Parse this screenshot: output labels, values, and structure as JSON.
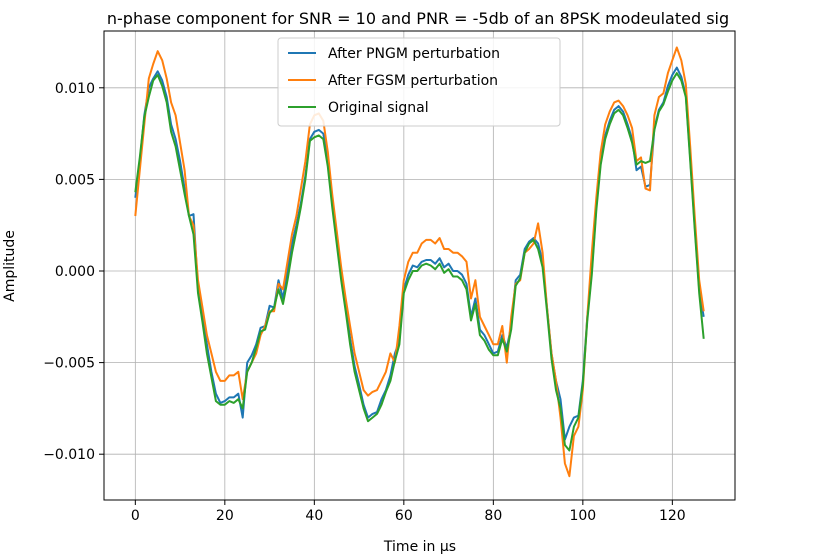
{
  "chart_data": {
    "type": "line",
    "title": "n-phase component for SNR = 10 and PNR = -5db of an 8PSK modeulated sig",
    "xlabel": "Time in µs",
    "ylabel": "Amplitude",
    "xlim": [
      -7,
      134
    ],
    "ylim": [
      -0.0125,
      0.0131
    ],
    "xticks": [
      0,
      20,
      40,
      60,
      80,
      100,
      120
    ],
    "yticks": [
      -0.01,
      -0.005,
      0.0,
      0.005,
      0.01
    ],
    "xtick_labels": [
      "0",
      "20",
      "40",
      "60",
      "80",
      "100",
      "120"
    ],
    "ytick_labels": [
      "−0.010",
      "−0.005",
      "0.000",
      "0.005",
      "0.010"
    ],
    "grid": true,
    "legend": "upper-center",
    "x": [
      0,
      1,
      2,
      3,
      4,
      5,
      6,
      7,
      8,
      9,
      10,
      11,
      12,
      13,
      14,
      15,
      16,
      17,
      18,
      19,
      20,
      21,
      22,
      23,
      24,
      25,
      26,
      27,
      28,
      29,
      30,
      31,
      32,
      33,
      34,
      35,
      36,
      37,
      38,
      39,
      40,
      41,
      42,
      43,
      44,
      45,
      46,
      47,
      48,
      49,
      50,
      51,
      52,
      53,
      54,
      55,
      56,
      57,
      58,
      59,
      60,
      61,
      62,
      63,
      64,
      65,
      66,
      67,
      68,
      69,
      70,
      71,
      72,
      73,
      74,
      75,
      76,
      77,
      78,
      79,
      80,
      81,
      82,
      83,
      84,
      85,
      86,
      87,
      88,
      89,
      90,
      91,
      92,
      93,
      94,
      95,
      96,
      97,
      98,
      99,
      100,
      101,
      102,
      103,
      104,
      105,
      106,
      107,
      108,
      109,
      110,
      111,
      112,
      113,
      114,
      115,
      116,
      117,
      118,
      119,
      120,
      121,
      122,
      123,
      124,
      125,
      126,
      127
    ],
    "series": [
      {
        "name": "After PNGM perturbation",
        "color": "#1f77b4",
        "values": [
          0.004,
          0.006,
          0.0085,
          0.01,
          0.0105,
          0.0109,
          0.0104,
          0.0095,
          0.008,
          0.0072,
          0.006,
          0.0045,
          0.003,
          0.0031,
          -0.001,
          -0.0025,
          -0.004,
          -0.0055,
          -0.0067,
          -0.0072,
          -0.0071,
          -0.0069,
          -0.0069,
          -0.0067,
          -0.008,
          -0.005,
          -0.0046,
          -0.004,
          -0.0031,
          -0.003,
          -0.0019,
          -0.002,
          -0.0005,
          -0.0015,
          0.0,
          0.0015,
          0.0025,
          0.0037,
          0.0052,
          0.0072,
          0.0076,
          0.0077,
          0.0075,
          0.006,
          0.0038,
          0.0018,
          -0.0002,
          -0.0018,
          -0.0037,
          -0.0052,
          -0.0062,
          -0.0073,
          -0.008,
          -0.0078,
          -0.0077,
          -0.007,
          -0.0065,
          -0.0057,
          -0.0045,
          -0.0038,
          -0.001,
          -0.0002,
          0.0003,
          0.0002,
          0.0005,
          0.0006,
          0.0006,
          0.0004,
          0.0007,
          0.0002,
          0.0004,
          0.0,
          0.0,
          -0.0002,
          -0.0007,
          -0.0025,
          -0.0015,
          -0.0032,
          -0.0035,
          -0.004,
          -0.0045,
          -0.0044,
          -0.0035,
          -0.0042,
          -0.003,
          -0.0005,
          -0.0002,
          0.0012,
          0.0016,
          0.0018,
          0.0015,
          0.0005,
          -0.002,
          -0.0045,
          -0.006,
          -0.007,
          -0.0092,
          -0.0085,
          -0.008,
          -0.0079,
          -0.006,
          -0.0025,
          0.0,
          0.0035,
          0.006,
          0.0074,
          0.0082,
          0.0088,
          0.009,
          0.0087,
          0.008,
          0.0072,
          0.0055,
          0.0057,
          0.0046,
          0.0047,
          0.0078,
          0.0088,
          0.0092,
          0.0101,
          0.0107,
          0.0111,
          0.0106,
          0.0096,
          0.0062,
          0.0025,
          -0.001,
          -0.0025
        ]
      },
      {
        "name": "After FGSM perturbation",
        "color": "#ff7f0e",
        "values": [
          0.003,
          0.0055,
          0.008,
          0.0105,
          0.0113,
          0.012,
          0.0115,
          0.0105,
          0.0092,
          0.0085,
          0.007,
          0.0055,
          0.003,
          0.0025,
          -0.0005,
          -0.002,
          -0.0035,
          -0.0045,
          -0.0055,
          -0.006,
          -0.006,
          -0.0057,
          -0.0057,
          -0.0055,
          -0.007,
          -0.0055,
          -0.005,
          -0.0045,
          -0.0035,
          -0.003,
          -0.0022,
          -0.0022,
          -0.0007,
          -0.001,
          0.0005,
          0.002,
          0.003,
          0.0045,
          0.006,
          0.008,
          0.0085,
          0.0086,
          0.0082,
          0.0065,
          0.0042,
          0.0022,
          0.0002,
          -0.0015,
          -0.003,
          -0.0045,
          -0.0055,
          -0.0065,
          -0.0068,
          -0.0066,
          -0.0065,
          -0.006,
          -0.0055,
          -0.0045,
          -0.005,
          -0.003,
          -0.0005,
          0.0005,
          0.001,
          0.001,
          0.0015,
          0.0017,
          0.0017,
          0.0015,
          0.0018,
          0.0012,
          0.0012,
          0.001,
          0.001,
          0.0008,
          0.0005,
          -0.0015,
          -0.0005,
          -0.0025,
          -0.003,
          -0.0035,
          -0.004,
          -0.004,
          -0.003,
          -0.005,
          -0.0025,
          -0.0007,
          -0.0005,
          0.001,
          0.0012,
          0.0015,
          0.0026,
          0.001,
          -0.002,
          -0.0045,
          -0.006,
          -0.008,
          -0.0105,
          -0.0112,
          -0.009,
          -0.0085,
          -0.0065,
          -0.0025,
          0.001,
          0.004,
          0.0065,
          0.008,
          0.0087,
          0.0092,
          0.0093,
          0.009,
          0.0085,
          0.0078,
          0.006,
          0.0062,
          0.0045,
          0.0044,
          0.0085,
          0.0095,
          0.0097,
          0.0108,
          0.0115,
          0.0122,
          0.0115,
          0.0102,
          0.0068,
          0.003,
          -0.0005,
          -0.0022
        ]
      },
      {
        "name": "Original signal",
        "color": "#2ca02c",
        "values": [
          0.0043,
          0.0062,
          0.0084,
          0.0095,
          0.0104,
          0.0107,
          0.0101,
          0.0092,
          0.0076,
          0.0068,
          0.0055,
          0.0042,
          0.003,
          0.002,
          -0.0012,
          -0.0028,
          -0.0045,
          -0.0058,
          -0.0071,
          -0.0073,
          -0.0073,
          -0.0071,
          -0.0072,
          -0.007,
          -0.0075,
          -0.0055,
          -0.005,
          -0.0042,
          -0.0033,
          -0.0032,
          -0.0023,
          -0.002,
          -0.001,
          -0.0018,
          -0.0005,
          0.001,
          0.0022,
          0.0035,
          0.005,
          0.0071,
          0.0073,
          0.0074,
          0.0072,
          0.0057,
          0.0035,
          0.0015,
          -0.0005,
          -0.0022,
          -0.004,
          -0.0055,
          -0.0065,
          -0.0075,
          -0.0082,
          -0.008,
          -0.0078,
          -0.0073,
          -0.0066,
          -0.006,
          -0.0049,
          -0.004,
          -0.0012,
          -0.0005,
          0.0,
          0.0,
          0.0003,
          0.0004,
          0.0003,
          0.0001,
          0.0004,
          -0.0001,
          0.0001,
          -0.0003,
          -0.0003,
          -0.0005,
          -0.001,
          -0.0027,
          -0.0018,
          -0.0035,
          -0.0038,
          -0.0043,
          -0.0046,
          -0.0046,
          -0.0037,
          -0.0044,
          -0.0032,
          -0.0008,
          -0.0004,
          0.001,
          0.0015,
          0.0017,
          0.0012,
          0.0002,
          -0.0022,
          -0.0048,
          -0.0065,
          -0.0075,
          -0.0095,
          -0.0098,
          -0.0085,
          -0.008,
          -0.0062,
          -0.0027,
          -0.0002,
          0.0033,
          0.0058,
          0.0072,
          0.008,
          0.0086,
          0.0088,
          0.0085,
          0.0078,
          0.007,
          0.0058,
          0.006,
          0.0059,
          0.006,
          0.0077,
          0.0087,
          0.0091,
          0.0098,
          0.0104,
          0.0108,
          0.0104,
          0.0095,
          0.006,
          0.0023,
          -0.0012,
          -0.0037
        ]
      }
    ]
  }
}
